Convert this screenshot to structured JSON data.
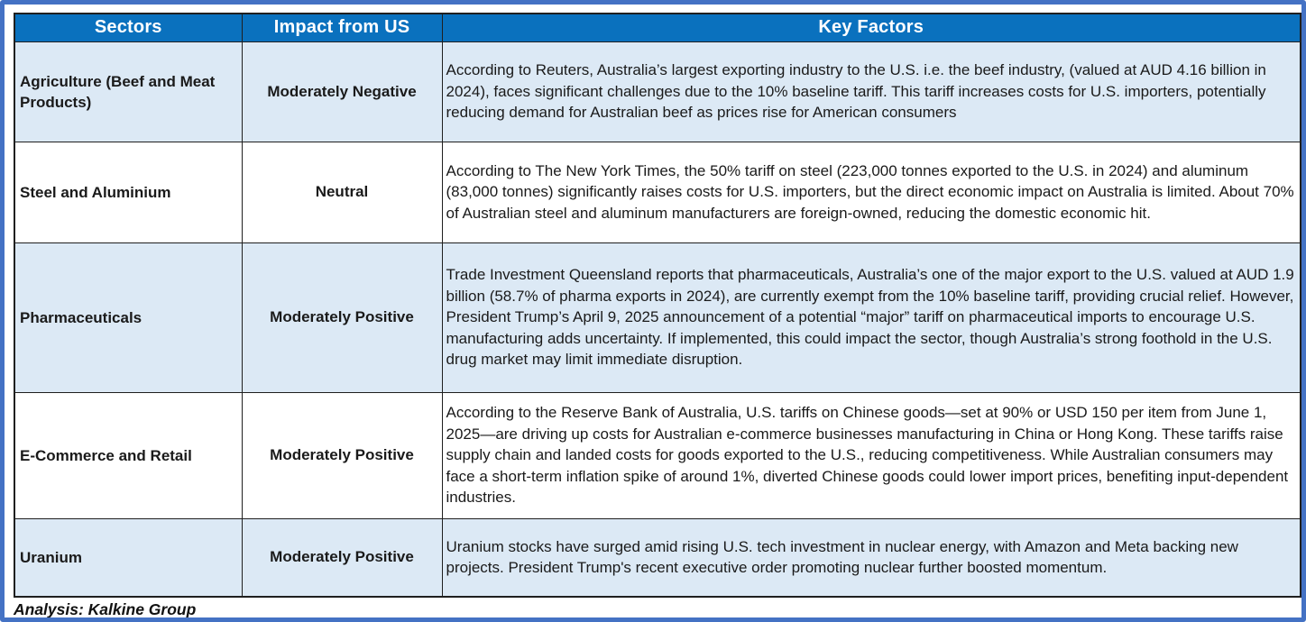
{
  "table": {
    "columns": [
      "Sectors",
      "Impact from US",
      "Key Factors"
    ],
    "rows": [
      {
        "sector": "Agriculture (Beef and Meat Products)",
        "impact": "Moderately Negative",
        "key_factors": "According to Reuters, Australia’s largest exporting industry to the U.S. i.e. the beef industry,  (valued at AUD 4.16 billion in 2024), faces significant challenges due to the 10% baseline tariff. This tariff increases costs for U.S. importers, potentially reducing demand for Australian beef as prices rise for American consumers"
      },
      {
        "sector": "Steel and Aluminium",
        "impact": "Neutral",
        "key_factors": "According to The New York Times, the 50% tariff on steel (223,000 tonnes exported to the U.S. in 2024) and aluminum (83,000 tonnes) significantly raises costs for U.S. importers, but the direct economic impact on Australia is limited. About 70% of Australian steel and aluminum manufacturers are foreign-owned, reducing the domestic economic hit."
      },
      {
        "sector": "Pharmaceuticals",
        "impact": "Moderately Positive",
        "key_factors": "Trade Investment Queensland reports that pharmaceuticals, Australia’s one of the major export to the U.S. valued at AUD 1.9 billion (58.7% of pharma exports in 2024), are currently exempt from the 10% baseline tariff, providing crucial relief. However, President Trump’s April 9, 2025 announcement of a potential “major” tariff on pharmaceutical imports to encourage U.S. manufacturing adds uncertainty. If implemented, this could impact the sector, though Australia’s strong foothold in the U.S. drug market may limit immediate disruption."
      },
      {
        "sector": "E-Commerce and Retail",
        "impact": "Moderately Positive",
        "key_factors": "According to the Reserve Bank of Australia, U.S. tariffs on Chinese goods—set at 90% or USD 150 per item from June 1, 2025—are driving up costs for Australian e-commerce businesses manufacturing in China or Hong Kong. These tariffs raise supply chain and landed costs for goods exported to the U.S., reducing competitiveness. While Australian consumers may face a short-term inflation spike of around 1%, diverted Chinese goods could lower import prices, benefiting input-dependent industries."
      },
      {
        "sector": "Uranium",
        "impact": "Moderately Positive",
        "key_factors": "Uranium stocks have surged amid rising U.S. tech investment in nuclear energy, with Amazon and Meta backing new projects. President Trump's recent executive order promoting nuclear further boosted momentum."
      }
    ],
    "footer": "Analysis: Kalkine Group"
  },
  "colors": {
    "header_bg": "#0A71BE",
    "header_text": "#FFFFFF",
    "row_alt_bg": "#DCE9F5",
    "row_bg": "#FFFFFF",
    "frame_border": "#4472C4",
    "table_border": "#1F1F1F",
    "body_text": "#1A1A1A"
  }
}
